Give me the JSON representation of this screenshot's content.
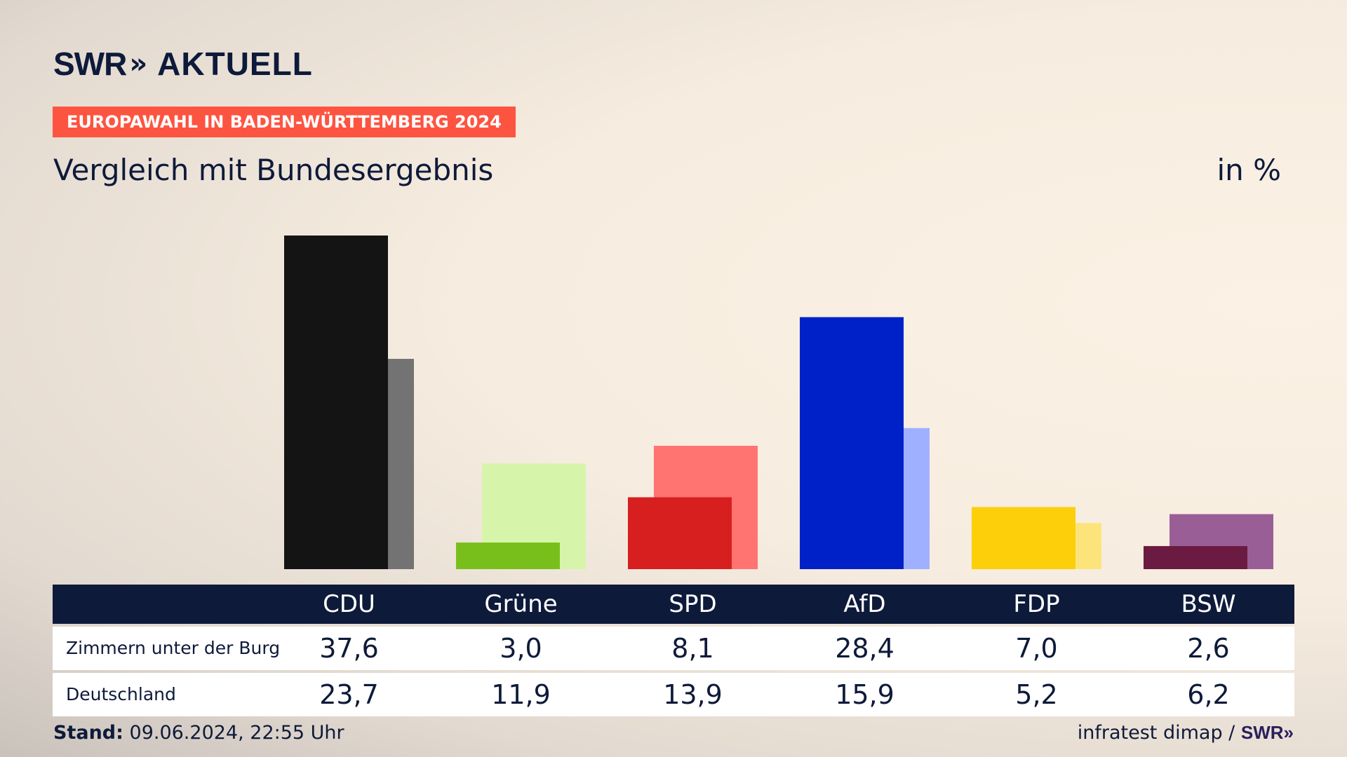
{
  "header": {
    "brand": "SWR",
    "brand_arrows": "»",
    "product": "AKTUELL",
    "tag": "EUROPAWAHL IN BADEN-WÜRTTEMBERG 2024",
    "subtitle": "Vergleich mit Bundesergebnis",
    "unit": "in %"
  },
  "chart_data": {
    "type": "bar",
    "categories": [
      "CDU",
      "Grüne",
      "SPD",
      "AfD",
      "FDP",
      "BSW"
    ],
    "series": [
      {
        "name": "Zimmern unter der Burg",
        "values": [
          37.6,
          3.0,
          8.1,
          28.4,
          7.0,
          2.6
        ],
        "labels": [
          "37,6",
          "3,0",
          "8,1",
          "28,4",
          "7,0",
          "2,6"
        ]
      },
      {
        "name": "Deutschland",
        "values": [
          23.7,
          11.9,
          13.9,
          15.9,
          5.2,
          6.2
        ],
        "labels": [
          "23,7",
          "11,9",
          "13,9",
          "15,9",
          "5,2",
          "6,2"
        ]
      }
    ],
    "ylim": [
      0,
      37.6
    ],
    "colors": {
      "local": [
        "#141414",
        "#79bf1c",
        "#d71f1f",
        "#0021c8",
        "#fdcf0a",
        "#6b1a41"
      ],
      "national": [
        "#737373",
        "#d6f5aa",
        "#ff7370",
        "#9eb0ff",
        "#fde47a",
        "#9a5e97"
      ]
    }
  },
  "footer": {
    "stand_label": "Stand:",
    "stand_value": "09.06.2024, 22:55 Uhr",
    "source": "infratest dimap /",
    "source_brand": "SWR»"
  }
}
